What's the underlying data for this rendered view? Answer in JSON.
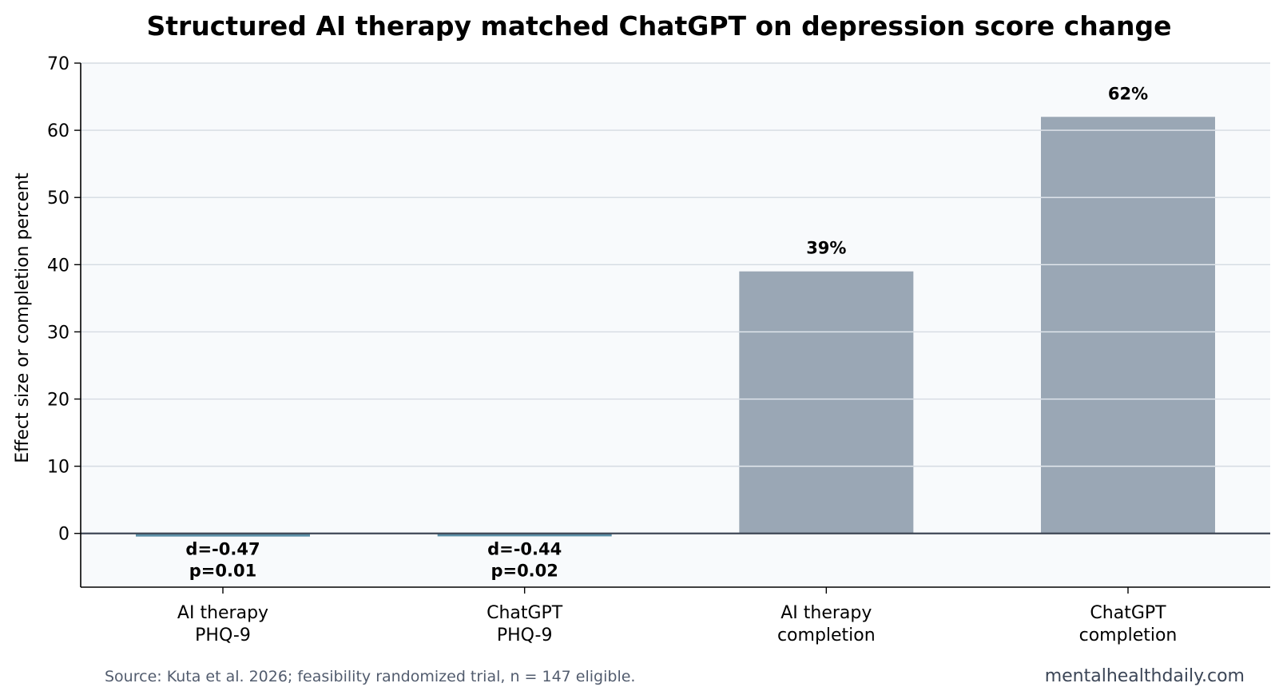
{
  "chart_data": {
    "type": "bar",
    "title": "Structured AI therapy matched ChatGPT on depression score change",
    "ylabel": "Effect size or completion percent",
    "xlabel": "",
    "ylim": [
      -8,
      70
    ],
    "yticks": [
      0,
      10,
      20,
      30,
      40,
      50,
      60,
      70
    ],
    "grid": true,
    "categories": [
      [
        "AI therapy",
        "PHQ-9"
      ],
      [
        "ChatGPT",
        "PHQ-9"
      ],
      [
        "AI therapy",
        "completion"
      ],
      [
        "ChatGPT",
        "completion"
      ]
    ],
    "values": [
      -0.47,
      -0.44,
      39,
      62
    ],
    "bar_labels": [
      [
        "d=-0.47",
        "p=0.01"
      ],
      [
        "d=-0.44",
        "p=0.02"
      ],
      [
        "39%"
      ],
      [
        "62%"
      ]
    ],
    "colors": {
      "effect_bar": "#5b8fa6",
      "completion_bar": "#9aa7b5",
      "plot_background": "#f8fafc",
      "grid": "#d5dbe2",
      "zero_line": "#3f4756"
    }
  },
  "footer": {
    "source": "Source: Kuta et al. 2026; feasibility randomized trial, n = 147 eligible.",
    "brand": "mentalhealthdaily.com"
  }
}
